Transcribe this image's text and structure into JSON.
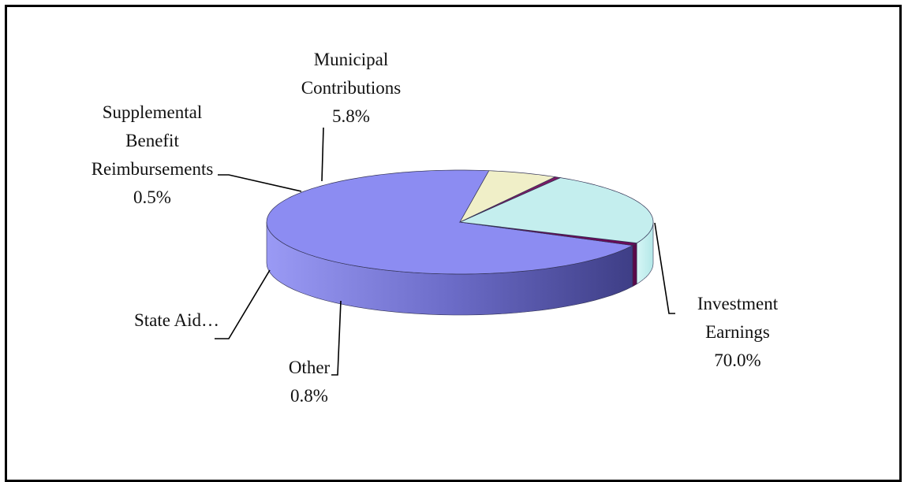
{
  "chart_data": {
    "type": "pie",
    "style": "3d-exploded-none",
    "title": "",
    "slices": [
      {
        "label_lines": [
          "Investment",
          "Earnings"
        ],
        "value_label": "70.0%",
        "value": 70.0,
        "color": "#8c8cf2",
        "side_color": "#5c5cb8"
      },
      {
        "label_lines": [
          "Other"
        ],
        "value_label": "0.8%",
        "value": 0.8,
        "color": "#6a0a58",
        "side_color": "#5a0a4a"
      },
      {
        "label_lines": [
          "State Aid…"
        ],
        "value_label": "",
        "value": 22.9,
        "color": "#c4eeee",
        "side_color": "#a9dede"
      },
      {
        "label_lines": [
          "Supplemental",
          "Benefit",
          "Reimbursements"
        ],
        "value_label": "0.5%",
        "value": 0.5,
        "color": "#7a1a64",
        "side_color": "#6a1a55"
      },
      {
        "label_lines": [
          "Municipal",
          "Contributions"
        ],
        "value_label": "5.8%",
        "value": 5.8,
        "color": "#f0efc8",
        "side_color": "#d8d6a8"
      }
    ],
    "colors": {
      "frame": "#000000",
      "leader_lines": "#000000",
      "text": "#111111"
    }
  }
}
